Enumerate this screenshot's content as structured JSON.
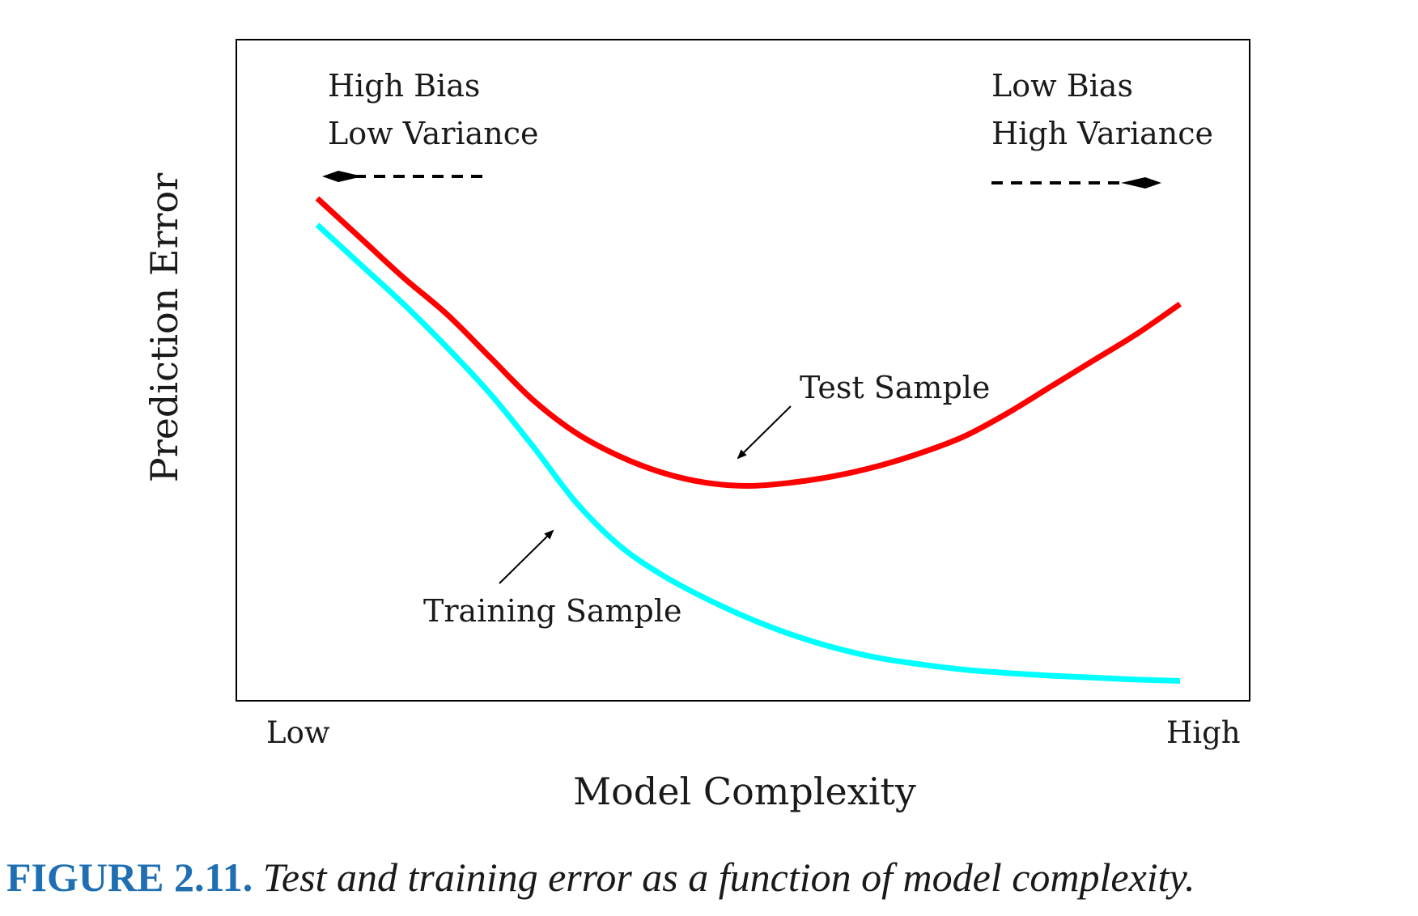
{
  "chart_data": {
    "type": "line",
    "xlabel": "Model Complexity",
    "ylabel": "Prediction Error",
    "x_tick_labels": [
      "Low",
      "High"
    ],
    "x_range": [
      0,
      1
    ],
    "y_range": [
      0,
      1
    ],
    "grid": false,
    "legend": "none",
    "annotations": {
      "left_top": "High Bias",
      "left_bottom": "Low Variance",
      "right_top": "Low Bias",
      "right_bottom": "High Variance"
    },
    "series": [
      {
        "name": "Test Sample",
        "color": "#ff0000",
        "x": [
          0.0,
          0.05,
          0.1,
          0.15,
          0.2,
          0.25,
          0.3,
          0.35,
          0.4,
          0.45,
          0.5,
          0.55,
          0.6,
          0.65,
          0.7,
          0.75,
          0.8,
          0.85,
          0.9,
          0.95,
          1.0
        ],
        "y": [
          0.76,
          0.7,
          0.64,
          0.585,
          0.52,
          0.455,
          0.405,
          0.37,
          0.345,
          0.33,
          0.325,
          0.33,
          0.34,
          0.355,
          0.375,
          0.4,
          0.435,
          0.475,
          0.515,
          0.555,
          0.6
        ]
      },
      {
        "name": "Training Sample",
        "color": "#00ffff",
        "x": [
          0.0,
          0.05,
          0.1,
          0.15,
          0.2,
          0.25,
          0.3,
          0.35,
          0.4,
          0.45,
          0.5,
          0.55,
          0.6,
          0.65,
          0.7,
          0.75,
          0.8,
          0.85,
          0.9,
          0.95,
          1.0
        ],
        "y": [
          0.72,
          0.66,
          0.6,
          0.535,
          0.465,
          0.385,
          0.3,
          0.235,
          0.19,
          0.155,
          0.125,
          0.1,
          0.08,
          0.065,
          0.055,
          0.047,
          0.042,
          0.038,
          0.035,
          0.032,
          0.03
        ]
      }
    ]
  },
  "caption": {
    "figure": "FIGURE 2.11.",
    "text": "Test and training error as a function of model complexity."
  }
}
